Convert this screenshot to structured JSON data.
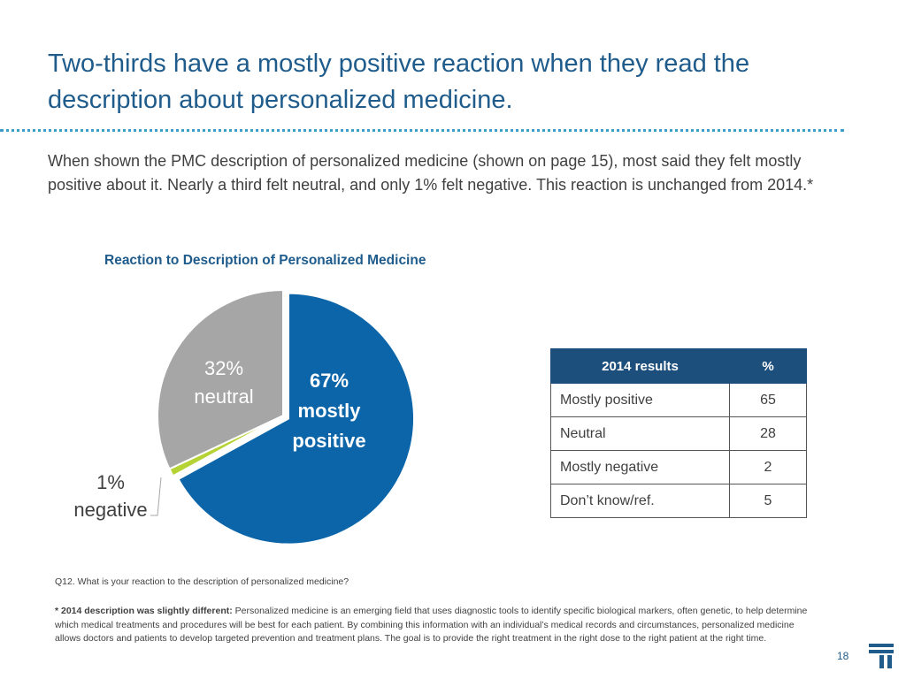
{
  "header": {
    "title": "Two-thirds have a mostly positive reaction when they read the description about personalized medicine."
  },
  "intro": {
    "text": "When shown the PMC description of personalized medicine (shown on page 15), most said they felt mostly positive about it. Nearly a third felt neutral, and only 1% felt negative. This reaction is unchanged from 2014.*"
  },
  "chart_data": {
    "type": "pie",
    "title": "Reaction to Description of Personalized Medicine",
    "slices": [
      {
        "label": "mostly positive",
        "value": 67,
        "percent_label": "67%",
        "color": "#0b65a8",
        "exploded": true
      },
      {
        "label": "negative",
        "value": 1,
        "percent_label": "1%",
        "color": "#b5d334",
        "exploded": false
      },
      {
        "label": "neutral",
        "value": 32,
        "percent_label": "32%",
        "color": "#a6a6a6",
        "exploded": false
      }
    ]
  },
  "table": {
    "headers": [
      "2014 results",
      "%"
    ],
    "rows": [
      {
        "label": "Mostly positive",
        "value": "65"
      },
      {
        "label": "Neutral",
        "value": "28"
      },
      {
        "label": "Mostly negative",
        "value": "2"
      },
      {
        "label": "Don’t know/ref.",
        "value": "5"
      }
    ]
  },
  "footer": {
    "question": "Q12. What is your reaction to the description of personalized medicine?",
    "footnote_label": "* 2014 description was slightly different:",
    "footnote_text": " Personalized medicine is an emerging field that uses diagnostic tools to identify specific biological markers, often genetic, to help determine which medical treatments and procedures will be best for each patient. By combining this information with an individual’s medical records and circumstances, personalized medicine allows doctors and patients to develop targeted prevention and treatment plans. The goal is to provide the right treatment in the right dose to the right patient at the right time.",
    "page_number": "18"
  },
  "colors": {
    "title": "#1f5c8c",
    "table_header": "#1d4f7c",
    "divider": "#3d9cc8"
  }
}
